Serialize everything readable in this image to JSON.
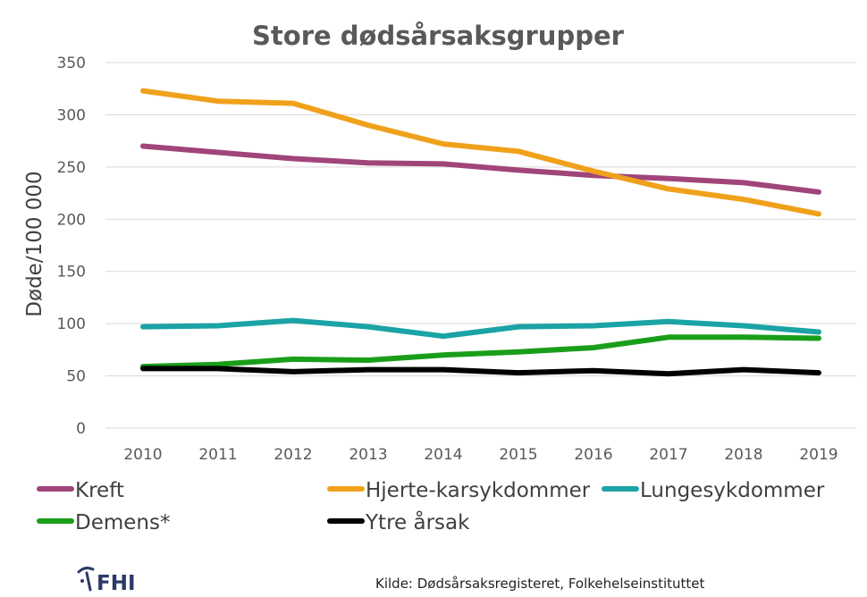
{
  "chart_data": {
    "type": "line",
    "title": "Store dødsårsaksgrupper",
    "xlabel": "",
    "ylabel": "Døde/100 000",
    "ylim": [
      0,
      350
    ],
    "yticks": [
      "0",
      "50",
      "100",
      "150",
      "200",
      "250",
      "300",
      "350"
    ],
    "grid": true,
    "legend_position": "bottom",
    "categories": [
      "2010",
      "2011",
      "2012",
      "2013",
      "2014",
      "2015",
      "2016",
      "2017",
      "2018",
      "2019"
    ],
    "series": [
      {
        "name": "Kreft",
        "color": "#a0457a",
        "values": [
          270,
          264,
          258,
          254,
          253,
          247,
          242,
          239,
          235,
          226
        ]
      },
      {
        "name": "Hjerte-karsykdommer",
        "color": "#f0a11b",
        "values": [
          323,
          313,
          311,
          290,
          272,
          265,
          246,
          229,
          219,
          205
        ]
      },
      {
        "name": "Lungesykdommer",
        "color": "#1ba3a5",
        "values": [
          97,
          98,
          103,
          97,
          88,
          97,
          98,
          102,
          98,
          92
        ]
      },
      {
        "name": "Demens*",
        "color": "#1a9e1a",
        "values": [
          59,
          61,
          66,
          65,
          70,
          73,
          77,
          87,
          87,
          86
        ]
      },
      {
        "name": "Ytre årsak",
        "color": "#000000",
        "values": [
          57,
          57,
          54,
          56,
          56,
          53,
          55,
          52,
          56,
          53
        ]
      }
    ]
  },
  "footer": {
    "logo_text": "FHI",
    "source": "Kilde: Dødsårsaksregisteret, Folkehelseinstituttet"
  }
}
